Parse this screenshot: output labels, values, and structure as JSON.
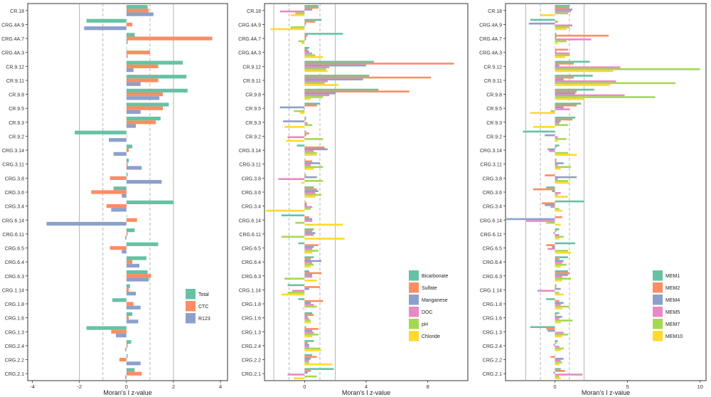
{
  "chart_data": [
    {
      "type": "bar",
      "orientation": "horizontal",
      "xlabel": "Moran's I z-value",
      "xlim": [
        -4.2,
        4.3
      ],
      "xticks": [
        -4,
        -2,
        0,
        2,
        4
      ],
      "reference_lines": [
        -2,
        2
      ],
      "dashed_lines": [
        -1,
        1
      ],
      "legend_position": "bottom-right",
      "categories": [
        "CR.18",
        "CRG.4A.9",
        "CRG.4A.7",
        "CRG.4A.3",
        "CR.9.12",
        "CR.9.11",
        "CR.9.8",
        "CR.9.5",
        "CR.9.3",
        "CR.9.2",
        "CRG.3.14",
        "CRG.3.11",
        "CRG.3.8",
        "CRG.3.6",
        "CRG.3.4",
        "CRG.6.14",
        "CRG.6.11",
        "CRG.6.5",
        "CRG.6.4",
        "CRG.6.3",
        "CRG.1.14",
        "CRG.1.8",
        "CRG.1.6",
        "CRG.1.3",
        "CRG.2.4",
        "CRG.2.2",
        "CRG.2.1"
      ],
      "series": [
        {
          "name": "Total",
          "color": "#66c2a5",
          "values": [
            0.9,
            -1.7,
            0.35,
            0.0,
            2.4,
            2.55,
            2.6,
            1.8,
            1.45,
            -2.2,
            0.25,
            0.1,
            0.05,
            -0.55,
            2.0,
            0.0,
            0.35,
            1.35,
            0.85,
            0.9,
            0.15,
            -0.6,
            0.25,
            -1.7,
            0.2,
            0.05,
            0.35
          ]
        },
        {
          "name": "CTC",
          "color": "#fc8d62",
          "values": [
            0.95,
            0.25,
            3.65,
            1.0,
            1.35,
            1.35,
            1.55,
            1.55,
            1.25,
            0.0,
            0.1,
            0.05,
            -0.7,
            -1.5,
            -0.85,
            0.45,
            0.05,
            -0.7,
            0.25,
            1.05,
            0.1,
            0.3,
            0.1,
            -0.65,
            0.05,
            -0.3,
            0.65
          ]
        },
        {
          "name": "R123",
          "color": "#8da0cb",
          "values": [
            1.15,
            -1.8,
            0.05,
            0.05,
            0.3,
            0.6,
            1.4,
            0.6,
            0.4,
            -0.75,
            -0.55,
            0.65,
            1.5,
            -0.2,
            -0.65,
            -3.4,
            -0.05,
            -0.2,
            0.55,
            0.95,
            0.4,
            0.6,
            0.5,
            -0.45,
            -0.05,
            0.6,
            -0.05
          ]
        }
      ]
    },
    {
      "type": "bar",
      "orientation": "horizontal",
      "xlabel": "Moran's I z-value",
      "xlim": [
        -2.6,
        10.6
      ],
      "xticks": [
        0,
        4,
        8
      ],
      "reference_lines": [
        -2,
        2
      ],
      "dashed_lines": [
        -1,
        1
      ],
      "legend_position": "bottom-right",
      "categories": [
        "CR.18",
        "CRG.4A.9",
        "CRG.4A.7",
        "CRG.4A.3",
        "CR.9.12",
        "CR.9.11",
        "CR.9.8",
        "CR.9.5",
        "CR.9.3",
        "CR.9.2",
        "CRG.3.14",
        "CRG.3.11",
        "CRG.3.8",
        "CRG.3.6",
        "CRG.3.4",
        "CRG.6.14",
        "CRG.6.11",
        "CRG.6.5",
        "CRG.6.4",
        "CRG.6.3",
        "CRG.1.14",
        "CRG.1.8",
        "CRG.1.6",
        "CRG.1.3",
        "CRG.2.4",
        "CRG.2.2",
        "CRG.2.1"
      ],
      "series": [
        {
          "name": "Bicarbonate",
          "color": "#66c2a5",
          "values": [
            0.9,
            1.1,
            2.5,
            0.3,
            4.5,
            4.2,
            4.8,
            1.0,
            0.1,
            0.1,
            -0.5,
            0.05,
            0.05,
            0.6,
            0.05,
            -1.5,
            0.6,
            -0.4,
            0.6,
            0.3,
            -1.1,
            -0.4,
            0.5,
            0.1,
            0.6,
            0.5,
            1.9
          ]
        },
        {
          "name": "Sulfate",
          "color": "#fc8d62",
          "values": [
            0.9,
            0.7,
            0.2,
            0.2,
            9.7,
            8.2,
            6.8,
            0.8,
            0.1,
            0.3,
            1.3,
            0.5,
            0.1,
            0.8,
            0.15,
            0.3,
            0.5,
            0.9,
            0.4,
            1.1,
            1.0,
            1.2,
            0.6,
            0.9,
            0.2,
            0.8,
            0.4
          ]
        },
        {
          "name": "Manganese",
          "color": "#8da0cb",
          "values": [
            0.5,
            0.1,
            0.1,
            0.3,
            4.0,
            3.8,
            2.0,
            -1.6,
            -1.4,
            0.1,
            1.5,
            1.0,
            0.8,
            0.9,
            0.15,
            0.5,
            0.7,
            0.6,
            1.1,
            0.5,
            0.3,
            0.4,
            0.2,
            0.5,
            0.3,
            0.4,
            0.2
          ]
        },
        {
          "name": "DOC",
          "color": "#e78ac3",
          "values": [
            -1.6,
            0.05,
            0.1,
            0.5,
            1.6,
            1.5,
            1.6,
            -0.05,
            0.2,
            -1.1,
            0.6,
            0.4,
            -1.7,
            0.7,
            0.5,
            0.5,
            0.6,
            0.5,
            0.5,
            0.5,
            -0.8,
            0.6,
            0.3,
            0.6,
            0.3,
            0.3,
            -1.1
          ]
        },
        {
          "name": "pH",
          "color": "#a6d854",
          "values": [
            -0.6,
            -0.9,
            -0.4,
            0.7,
            1.4,
            1.3,
            1.2,
            -0.7,
            0.5,
            1.2,
            0.8,
            1.2,
            1.2,
            1.1,
            0.4,
            -0.6,
            -1.5,
            0.9,
            0.6,
            -1.3,
            -1.1,
            0.8,
            0.4,
            0.9,
            1.0,
            0.3,
            0.8
          ]
        },
        {
          "name": "Chloride",
          "color": "#ffd92f",
          "values": [
            -0.9,
            -2.2,
            -0.2,
            1.2,
            1.5,
            2.2,
            0.4,
            -0.3,
            -1.3,
            -1.2,
            0.8,
            0.6,
            -0.2,
            0.7,
            -2.5,
            2.5,
            2.6,
            0.5,
            0.4,
            0.8,
            -1.5,
            -0.1,
            0.4,
            0.5,
            1.1,
            1.8,
            -0.7
          ]
        }
      ]
    },
    {
      "type": "bar",
      "orientation": "horizontal",
      "xlabel": "Moran's I z-value",
      "xlim": [
        -3.4,
        10.4
      ],
      "xticks": [
        0,
        5,
        10
      ],
      "reference_lines": [
        -2,
        2
      ],
      "dashed_lines": [
        -1,
        1
      ],
      "legend_position": "bottom-right",
      "categories": [
        "CR.18",
        "CRG.4A.9",
        "CRG.4A.7",
        "CRG.4A.3",
        "CR.9.12",
        "CR.9.11",
        "CR.9.8",
        "CR.9.5",
        "CR.9.3",
        "CR.9.2",
        "CRG.3.14",
        "CRG.3.11",
        "CRG.3.8",
        "CRG.3.6",
        "CRG.3.4",
        "CRG.6.14",
        "CRG.6.11",
        "CRG.6.5",
        "CRG.6.4",
        "CRG.6.3",
        "CRG.1.14",
        "CRG.1.8",
        "CRG.1.6",
        "CRG.1.3",
        "CRG.2.4",
        "CRG.2.2",
        "CRG.2.1"
      ],
      "series": [
        {
          "name": "MEM1",
          "color": "#66c2a5",
          "values": [
            1.0,
            -1.7,
            0.1,
            0.0,
            2.4,
            2.6,
            2.7,
            1.8,
            1.4,
            -2.2,
            0.3,
            0.1,
            0.0,
            -0.6,
            2.0,
            0.0,
            0.3,
            1.4,
            0.9,
            0.9,
            0.1,
            -0.6,
            0.3,
            -1.7,
            0.2,
            0.0,
            0.4
          ]
        },
        {
          "name": "MEM2",
          "color": "#fc8d62",
          "values": [
            1.0,
            0.2,
            3.7,
            0.9,
            1.3,
            1.3,
            1.5,
            1.5,
            1.2,
            0.0,
            0.1,
            0.1,
            -0.7,
            -1.5,
            -0.9,
            0.5,
            0.1,
            -0.6,
            0.3,
            1.0,
            0.1,
            0.3,
            0.1,
            -0.6,
            0.1,
            -0.3,
            0.7
          ]
        },
        {
          "name": "MEM4",
          "color": "#8da0cb",
          "values": [
            1.2,
            -1.8,
            0.1,
            0.1,
            0.3,
            0.6,
            1.4,
            0.6,
            0.4,
            -0.7,
            -0.5,
            0.6,
            1.5,
            -0.2,
            -0.7,
            -3.4,
            -0.1,
            -0.2,
            0.6,
            0.9,
            0.4,
            0.6,
            0.5,
            -0.5,
            -0.1,
            0.6,
            -0.1
          ]
        },
        {
          "name": "MEM5",
          "color": "#e78ac3",
          "values": [
            1.1,
            1.2,
            2.5,
            1.0,
            4.5,
            4.2,
            4.8,
            1.0,
            0.3,
            0.2,
            -0.4,
            0.2,
            0.2,
            0.4,
            -0.3,
            -2.0,
            0.3,
            -0.5,
            0.5,
            0.5,
            -1.2,
            0.4,
            0.3,
            0.6,
            0.3,
            0.4,
            1.9
          ]
        },
        {
          "name": "MEM7",
          "color": "#a6d854",
          "values": [
            0.9,
            1.0,
            0.8,
            1.0,
            10.0,
            8.3,
            6.9,
            -0.3,
            0.9,
            0.8,
            0.9,
            1.1,
            0.9,
            0.2,
            0.3,
            -0.6,
            0.6,
            0.9,
            0.8,
            1.1,
            0.3,
            1.0,
            1.2,
            0.9,
            0.6,
            0.5,
            0.3
          ]
        },
        {
          "name": "MEM10",
          "color": "#ffd92f",
          "values": [
            -1.0,
            0.8,
            0.2,
            0.7,
            4.0,
            3.8,
            2.0,
            -1.7,
            -1.5,
            0.2,
            1.5,
            0.4,
            1.0,
            0.9,
            0.5,
            0.4,
            0.3,
            1.1,
            0.4,
            0.5,
            0.6,
            0.5,
            0.4,
            0.5,
            0.4,
            0.3,
            0.4
          ]
        }
      ]
    }
  ]
}
